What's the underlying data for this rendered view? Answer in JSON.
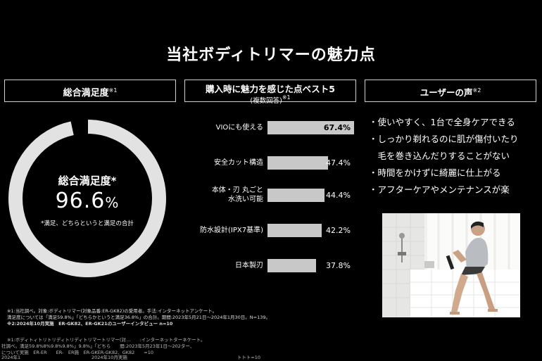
{
  "title": "当社ボディトリマーの魅力点",
  "sections": {
    "satisfaction": {
      "label": "総合満足度",
      "note_mark": "※1"
    },
    "ranking": {
      "label": "購入時に魅力を感じた点ベスト5",
      "sublabel": "(複数回答)",
      "note_mark": "※1"
    },
    "voices": {
      "label": "ユーザーの声",
      "note_mark": "※2"
    }
  },
  "donut": {
    "label": "総合満足度*",
    "value": "96.6",
    "unit": "%",
    "percent": 96.6,
    "note": "*満足、どちらというと満足の合計",
    "ring_color": "#e2e2e2"
  },
  "chart_data": {
    "type": "bar",
    "orientation": "horizontal",
    "categories": [
      "VIOにも使える",
      "安全カット構造",
      "本体・刃 丸ごと 水洗い可能",
      "防水設計(IPX7基準)",
      "日本製刃"
    ],
    "values": [
      67.4,
      47.4,
      44.4,
      42.2,
      37.8
    ],
    "value_labels": [
      "67.4%",
      "47.4%",
      "44.4%",
      "42.2%",
      "37.8%"
    ],
    "category_lines": [
      [
        "VIOにも使える"
      ],
      [
        "安全カット構造"
      ],
      [
        "本体・刃 丸ごと",
        "水洗い可能"
      ],
      [
        "防水設計(IPX7基準)"
      ],
      [
        "日本製刃"
      ]
    ],
    "xlim": [
      0,
      68
    ],
    "bar_color": "#c8c8c8"
  },
  "voices": [
    "・使いやすく、1台で全身ケアできる",
    "・しっかり剃れるのに肌が傷付いたり",
    "　毛を巻き込んだりすることがない",
    "・時間をかけずに綺麗に仕上がる",
    "・アフターケアやメンテナンスが楽"
  ],
  "footnotes": [
    "※1:当社調べ。対象:ボディトリマー(対象品番:ER-GK82)の愛用者。手法:インターネットアンケート。",
    "満足度については「満足59.8%」「どちらかというと満足36.8%」の合計。期間:2023年5月21日〜2024年1月30日。N=139。",
    "※2:2024年10月実施　ER-GK82、ER-GK21のユーザーインタビュー n=10"
  ],
  "ghost_lines": [
    "※1:ボディトィトリトリディトリディトリマートリマー(対…　　:インターネットターネケート。",
    "社調べ。満足59.8%8%9.8%9.8%」9.8%」「どちら　　間:2023年5月23年1日〜202ター、",
    "について実施　ER-ER　　ER-　ER施　ER-GKER-GK82、GK82　　=10",
    "2024年1",
    "2024年10月実施　　　　　　　　　　　　　　　　　　　　　　　　トトト=10"
  ]
}
